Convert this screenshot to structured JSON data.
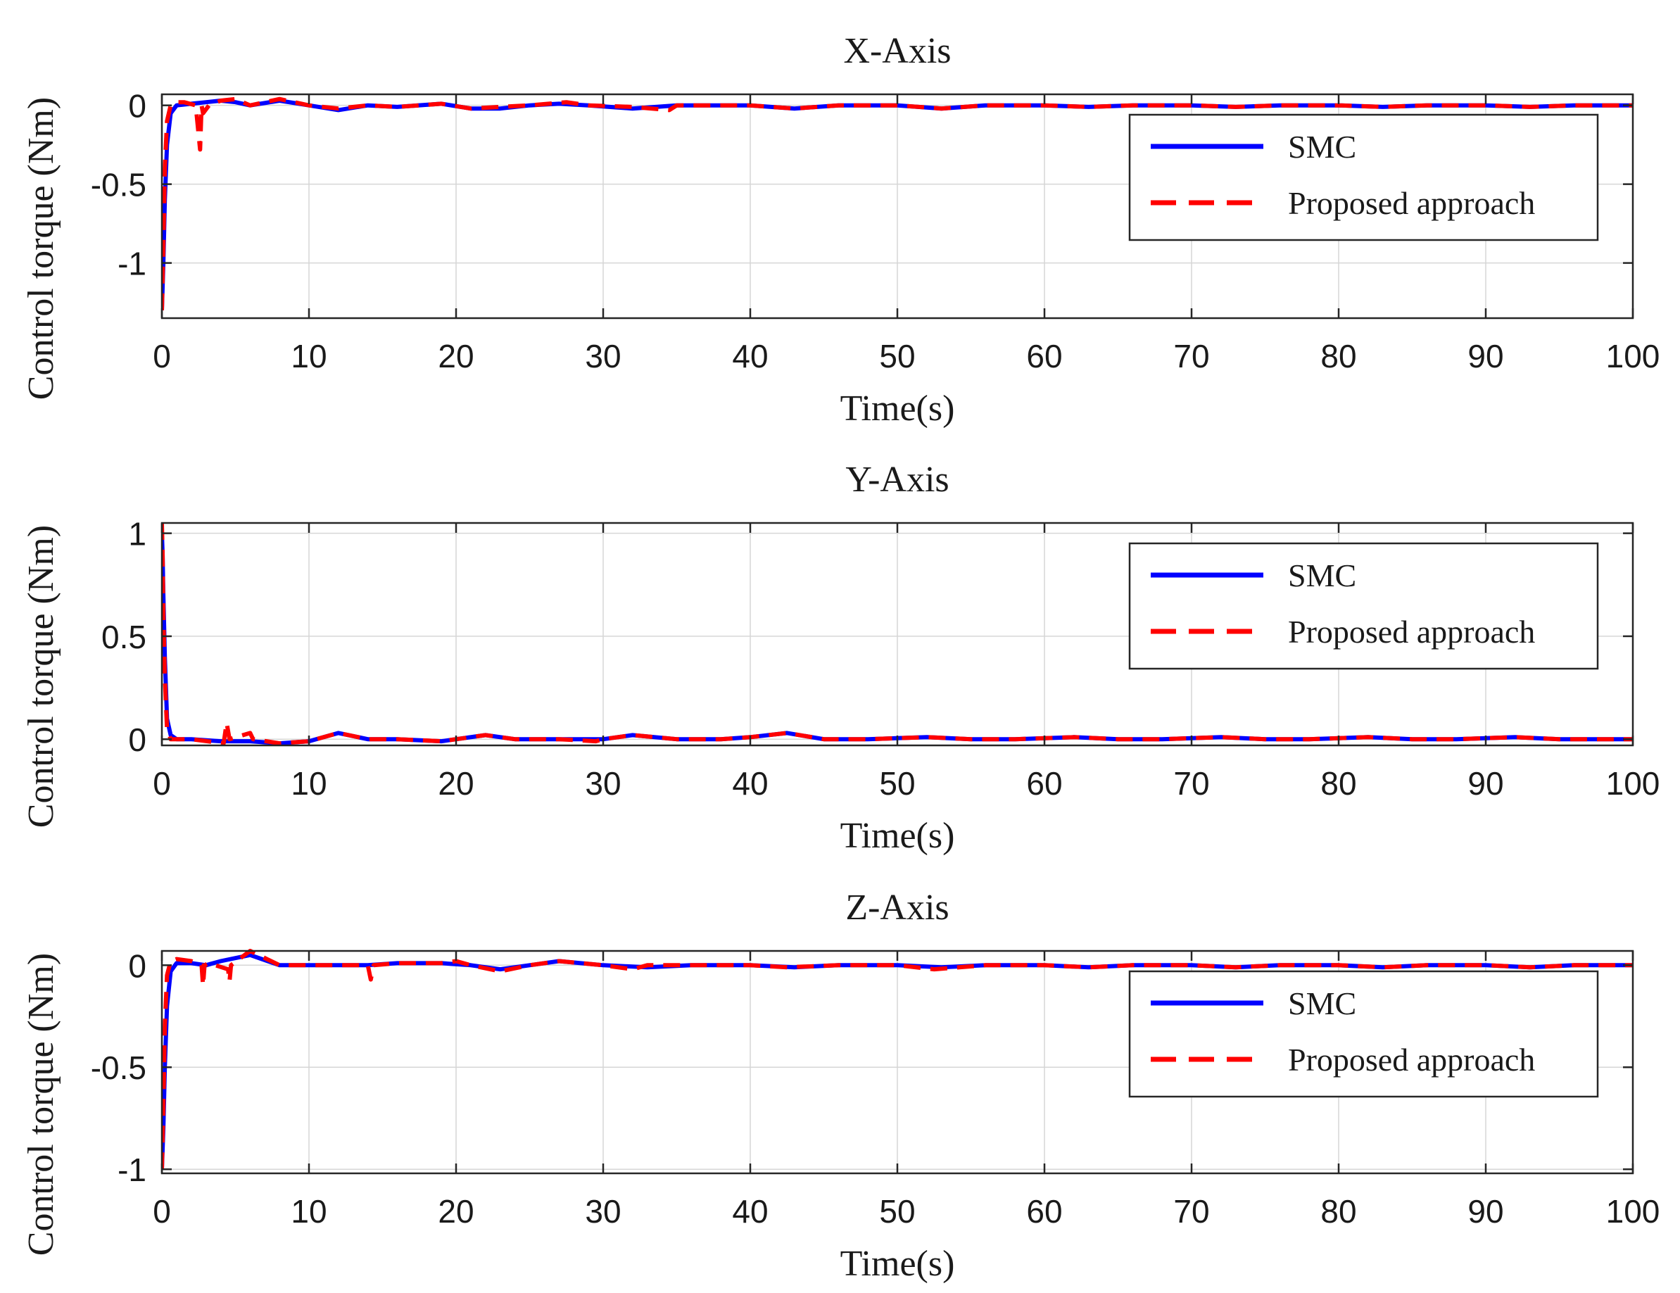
{
  "chart_data": [
    {
      "type": "line",
      "title": "X-Axis",
      "xlabel": "Time(s)",
      "ylabel": "Control torque (Nm)",
      "xlim": [
        0,
        100
      ],
      "ylim": [
        -1.35,
        0.07
      ],
      "xticks": [
        0,
        10,
        20,
        30,
        40,
        50,
        60,
        70,
        80,
        90,
        100
      ],
      "xtick_labels": [
        "0",
        "10",
        "20",
        "30",
        "40",
        "50",
        "60",
        "70",
        "80",
        "90",
        "100"
      ],
      "yticks": [
        0,
        -0.5,
        -1
      ],
      "ytick_labels": [
        "0",
        "-0.5",
        "-1"
      ],
      "grid": true,
      "legend": {
        "position": "top-right",
        "entries": [
          "SMC",
          "Proposed approach"
        ]
      },
      "series": [
        {
          "name": "SMC",
          "color": "#0000ff",
          "style": "solid",
          "x": [
            0,
            0.1,
            0.2,
            0.35,
            0.6,
            1,
            2,
            3,
            4,
            5,
            6,
            8,
            10,
            12,
            14,
            16,
            19,
            21,
            23,
            25,
            27,
            29,
            32,
            35,
            38,
            40,
            43,
            46,
            50,
            53,
            56,
            60,
            63,
            66,
            70,
            73,
            76,
            80,
            83,
            86,
            90,
            93,
            96,
            100
          ],
          "y": [
            -1.3,
            -1.0,
            -0.6,
            -0.25,
            -0.05,
            0.0,
            0.01,
            0.02,
            0.03,
            0.02,
            0.0,
            0.03,
            0.0,
            -0.03,
            0.0,
            -0.01,
            0.01,
            -0.02,
            -0.02,
            0.0,
            0.01,
            0.0,
            -0.02,
            0.0,
            0.0,
            0.0,
            -0.02,
            0.0,
            0.0,
            -0.02,
            0.0,
            0.0,
            -0.01,
            0.0,
            0.0,
            -0.01,
            0.0,
            0.0,
            -0.01,
            0.0,
            0.0,
            -0.01,
            0.0,
            0.0
          ]
        },
        {
          "name": "Proposed approach",
          "color": "#ff0000",
          "style": "dashed",
          "x": [
            0,
            0.1,
            0.2,
            0.35,
            0.6,
            1,
            1.5,
            2.3,
            2.6,
            2.7,
            2.8,
            3.2,
            4,
            5,
            6,
            8,
            10,
            12,
            14,
            16,
            19,
            21,
            23,
            25,
            27.5,
            29,
            32,
            34.5,
            35,
            38,
            40,
            43,
            46,
            50,
            53,
            56,
            60,
            63,
            66,
            70,
            73,
            76,
            80,
            83,
            86,
            90,
            93,
            96,
            100
          ],
          "y": [
            -1.3,
            -0.9,
            -0.4,
            -0.1,
            0.0,
            0.02,
            0.02,
            0.0,
            -0.28,
            0.0,
            -0.05,
            0.0,
            0.03,
            0.04,
            0.0,
            0.04,
            0.0,
            -0.02,
            0.0,
            -0.01,
            0.01,
            -0.02,
            -0.01,
            0.0,
            0.02,
            0.0,
            -0.01,
            -0.03,
            0.0,
            0.0,
            0.0,
            -0.02,
            0.0,
            0.0,
            -0.02,
            0.0,
            0.0,
            -0.01,
            0.0,
            0.0,
            -0.01,
            0.0,
            0.0,
            -0.01,
            0.0,
            0.0,
            -0.01,
            0.0,
            0.0
          ]
        }
      ]
    },
    {
      "type": "line",
      "title": "Y-Axis",
      "xlabel": "Time(s)",
      "ylabel": "Control torque (Nm)",
      "xlim": [
        0,
        100
      ],
      "ylim": [
        -0.03,
        1.05
      ],
      "xticks": [
        0,
        10,
        20,
        30,
        40,
        50,
        60,
        70,
        80,
        90,
        100
      ],
      "xtick_labels": [
        "0",
        "10",
        "20",
        "30",
        "40",
        "50",
        "60",
        "70",
        "80",
        "90",
        "100"
      ],
      "yticks": [
        1,
        0.5,
        0
      ],
      "ytick_labels": [
        "1",
        "0.5",
        "0"
      ],
      "grid": true,
      "legend": {
        "position": "top-right",
        "entries": [
          "SMC",
          "Proposed approach"
        ]
      },
      "series": [
        {
          "name": "SMC",
          "color": "#0000ff",
          "style": "solid",
          "x": [
            0,
            0.05,
            0.1,
            0.2,
            0.35,
            0.6,
            1,
            2,
            4,
            6,
            8,
            10,
            12,
            14,
            16,
            19,
            22,
            24,
            27,
            30,
            32,
            35,
            38,
            40,
            42.5,
            45,
            48,
            52,
            55,
            58,
            62,
            65,
            68,
            72,
            75,
            78,
            82,
            85,
            88,
            92,
            95,
            98,
            100
          ],
          "y": [
            1.0,
            0.9,
            0.7,
            0.4,
            0.1,
            0.02,
            0.0,
            0.0,
            -0.01,
            -0.01,
            -0.02,
            -0.01,
            0.03,
            0.0,
            0.0,
            -0.01,
            0.02,
            0.0,
            0.0,
            0.0,
            0.02,
            0.0,
            0.0,
            0.01,
            0.03,
            0.0,
            0.0,
            0.01,
            0.0,
            0.0,
            0.01,
            0.0,
            0.0,
            0.01,
            0.0,
            0.0,
            0.01,
            0.0,
            0.0,
            0.01,
            0.0,
            0.0,
            0.0
          ]
        },
        {
          "name": "Proposed approach",
          "color": "#ff0000",
          "style": "dashed",
          "x": [
            0,
            0.05,
            0.1,
            0.2,
            0.35,
            0.6,
            1,
            2,
            4.2,
            4.4,
            4.6,
            6,
            6.2,
            8,
            10,
            12,
            14,
            16,
            19,
            22,
            24,
            27,
            29.5,
            30,
            32,
            35,
            38,
            40,
            42.5,
            45,
            48,
            52,
            55,
            58,
            62,
            65,
            68,
            72,
            75,
            78,
            82,
            85,
            88,
            92,
            95,
            98,
            100
          ],
          "y": [
            1.05,
            0.9,
            0.6,
            0.3,
            0.05,
            0.0,
            0.0,
            0.0,
            -0.02,
            0.08,
            0.0,
            0.03,
            0.0,
            -0.02,
            -0.01,
            0.03,
            0.0,
            0.0,
            -0.01,
            0.02,
            0.0,
            0.0,
            -0.01,
            0.0,
            0.02,
            0.0,
            0.0,
            0.01,
            0.03,
            0.0,
            0.0,
            0.01,
            0.0,
            0.0,
            0.01,
            0.0,
            0.0,
            0.01,
            0.0,
            0.0,
            0.01,
            0.0,
            0.0,
            0.01,
            0.0,
            0.0,
            0.0
          ]
        }
      ]
    },
    {
      "type": "line",
      "title": "Z-Axis",
      "xlabel": "Time(s)",
      "ylabel": "Control torque (Nm)",
      "xlim": [
        0,
        100
      ],
      "ylim": [
        -1.02,
        0.07
      ],
      "xticks": [
        0,
        10,
        20,
        30,
        40,
        50,
        60,
        70,
        80,
        90,
        100
      ],
      "xtick_labels": [
        "0",
        "10",
        "20",
        "30",
        "40",
        "50",
        "60",
        "70",
        "80",
        "90",
        "100"
      ],
      "yticks": [
        0,
        -0.5,
        -1
      ],
      "ytick_labels": [
        "0",
        "-0.5",
        "-1"
      ],
      "grid": true,
      "legend": {
        "position": "top-right",
        "entries": [
          "SMC",
          "Proposed approach"
        ]
      },
      "series": [
        {
          "name": "SMC",
          "color": "#0000ff",
          "style": "solid",
          "x": [
            0,
            0.1,
            0.2,
            0.35,
            0.6,
            1,
            2,
            3,
            4,
            6,
            8,
            10,
            12,
            14,
            16,
            19,
            21,
            23,
            25,
            27,
            30,
            33,
            36,
            40,
            43,
            46,
            50,
            53,
            56,
            60,
            63,
            66,
            70,
            73,
            76,
            80,
            83,
            86,
            90,
            93,
            96,
            100
          ],
          "y": [
            -1.0,
            -0.8,
            -0.5,
            -0.2,
            -0.03,
            0.01,
            0.01,
            0.0,
            0.02,
            0.05,
            0.0,
            0.0,
            0.0,
            0.0,
            0.01,
            0.01,
            0.0,
            -0.02,
            0.0,
            0.02,
            0.0,
            -0.01,
            0.0,
            0.0,
            -0.01,
            0.0,
            0.0,
            -0.01,
            0.0,
            0.0,
            -0.01,
            0.0,
            0.0,
            -0.01,
            0.0,
            0.0,
            -0.01,
            0.0,
            0.0,
            -0.01,
            0.0,
            0.0
          ]
        },
        {
          "name": "Proposed approach",
          "color": "#ff0000",
          "style": "dashed",
          "x": [
            0,
            0.1,
            0.2,
            0.35,
            0.6,
            1,
            2,
            2.7,
            2.8,
            2.9,
            3.2,
            4.5,
            4.6,
            4.7,
            6,
            8,
            10,
            12,
            14,
            14.2,
            14.4,
            16,
            19,
            20,
            21,
            23,
            25,
            27,
            30,
            32,
            33,
            36,
            40,
            42.5,
            46,
            50,
            52.5,
            56,
            60,
            63,
            66,
            70,
            73,
            76,
            80,
            83,
            86,
            90,
            93,
            96,
            100
          ],
          "y": [
            -1.0,
            -0.7,
            -0.3,
            -0.05,
            0.02,
            0.03,
            0.02,
            0.0,
            -0.1,
            0.0,
            0.01,
            -0.02,
            -0.08,
            0.0,
            0.07,
            0.0,
            0.0,
            0.0,
            0.0,
            -0.07,
            0.0,
            0.01,
            0.01,
            0.02,
            0.0,
            -0.03,
            0.0,
            0.02,
            0.0,
            -0.02,
            0.0,
            0.0,
            0.0,
            -0.01,
            0.0,
            0.0,
            -0.02,
            0.0,
            0.0,
            -0.01,
            0.0,
            0.0,
            -0.01,
            0.0,
            0.0,
            -0.01,
            0.0,
            0.0,
            -0.01,
            0.0,
            0.0
          ]
        }
      ]
    }
  ]
}
